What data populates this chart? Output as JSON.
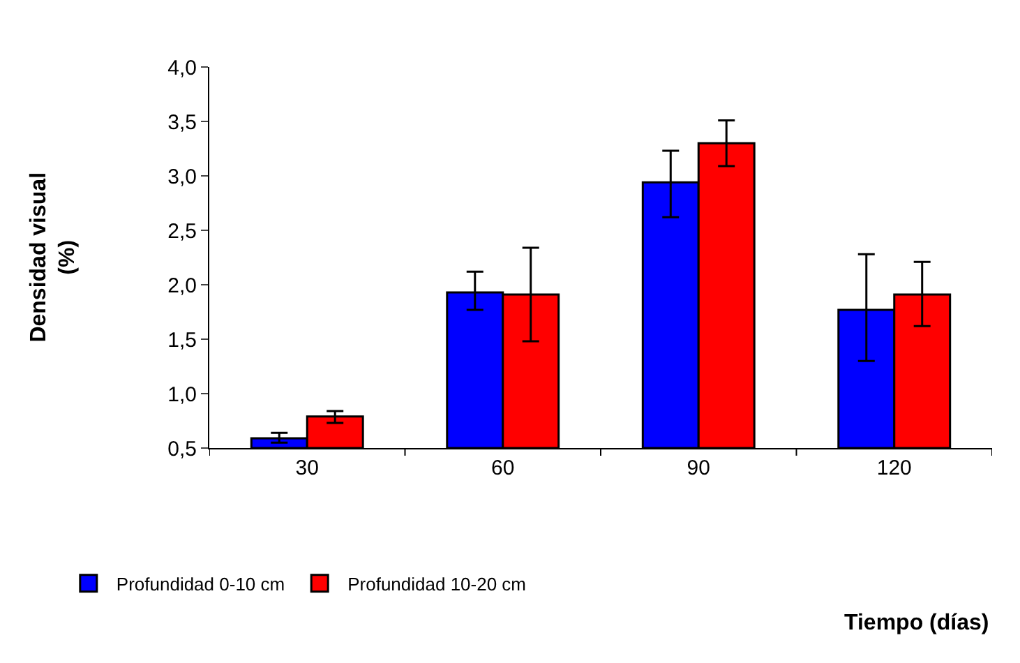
{
  "chart_data": {
    "type": "bar",
    "annotations": [
      "Tiempo (días)"
    ],
    "ylabel": "Densidad visual\n(%)",
    "categories": [
      "30",
      "60",
      "90",
      "120"
    ],
    "series": [
      {
        "name": "Profundidad 0-10 cm",
        "color": "#0000ff",
        "values": [
          0.59,
          1.93,
          2.94,
          1.77
        ],
        "errors": [
          [
            0.55,
            0.64
          ],
          [
            1.77,
            2.12
          ],
          [
            2.62,
            3.23
          ],
          [
            1.3,
            2.28
          ]
        ]
      },
      {
        "name": "Profundidad 10-20 cm",
        "color": "#ff0000",
        "values": [
          0.79,
          1.91,
          3.3,
          1.91
        ],
        "errors": [
          [
            0.73,
            0.84
          ],
          [
            1.48,
            2.34
          ],
          [
            3.09,
            3.51
          ],
          [
            1.62,
            2.21
          ]
        ]
      }
    ],
    "ylim": [
      0.5,
      4.0
    ],
    "yticks": [
      {
        "value": 0.5,
        "label": "0,5"
      },
      {
        "value": 1.0,
        "label": "1,0"
      },
      {
        "value": 1.5,
        "label": "1,5"
      },
      {
        "value": 2.0,
        "label": "2,0"
      },
      {
        "value": 2.5,
        "label": "2,5"
      },
      {
        "value": 3.0,
        "label": "3,0"
      },
      {
        "value": 3.5,
        "label": "3,5"
      },
      {
        "value": 4.0,
        "label": "4,0"
      }
    ],
    "legend": "bottom left"
  }
}
